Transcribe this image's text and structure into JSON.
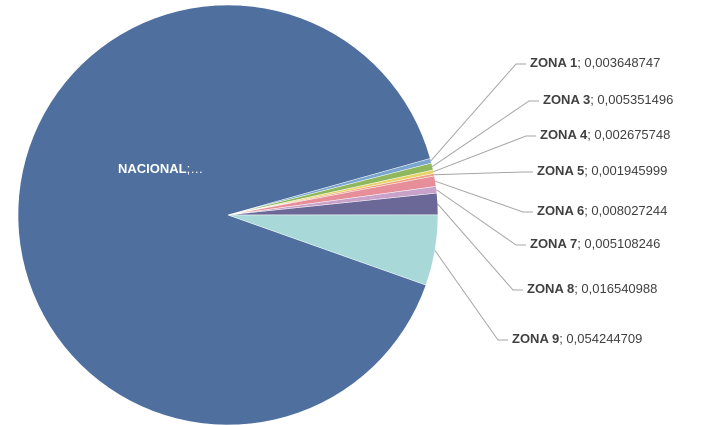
{
  "chart_data": {
    "type": "pie",
    "categories": [
      "NACIONAL",
      "ZONA 1",
      "ZONA 3",
      "ZONA 4",
      "ZONA 5",
      "ZONA 6",
      "ZONA 7",
      "ZONA 8",
      "ZONA 9"
    ],
    "values": [
      0.902456823,
      0.003648747,
      0.005351496,
      0.002675748,
      0.001945999,
      0.008027244,
      0.005108246,
      0.016540988,
      0.054244709
    ],
    "value_labels": [
      ";…",
      "; 0,003648747",
      "; 0,005351496",
      "; 0,002675748",
      "; 0,001945999",
      "; 0,008027244",
      "; 0,005108246",
      "; 0,016540988",
      "; 0,054244709"
    ],
    "colors": [
      "#4f6f9e",
      "#7aa6cf",
      "#8fb85e",
      "#e6d36a",
      "#f0a07a",
      "#e68f9a",
      "#c9a2c9",
      "#6b6797",
      "#a9d8d8"
    ]
  }
}
